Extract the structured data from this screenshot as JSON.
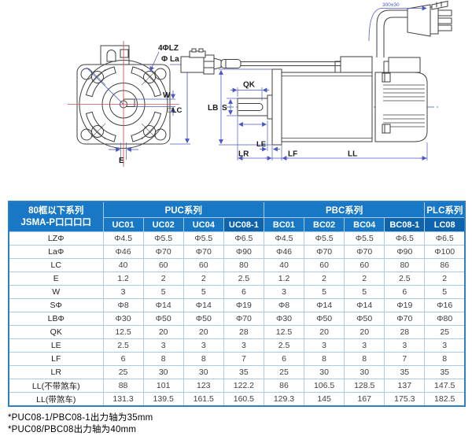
{
  "colors": {
    "header_blue": "#1878c5",
    "header_blue_dark": "#0d63ac",
    "grid_blue": "#a9cbe8",
    "outer_border_blue": "#2e7fc2",
    "dimension_blue": "#4a58c4",
    "centerline_red": "#cc5454",
    "drawing_line": "#3f3f3f"
  },
  "drawing": {
    "front": {
      "lz": "4ΦLZ",
      "la": "Φ La",
      "w": "W",
      "lc": "□LC",
      "e": "E"
    },
    "side": {
      "qk": "QK",
      "s": "S",
      "lb": "LB",
      "le": "LE",
      "lr": "LR",
      "lf": "LF",
      "ll": "LL",
      "cable": "300±30"
    }
  },
  "table": {
    "corner": {
      "line1": "80框以下系列",
      "line2": "JSMA-P口口口口"
    },
    "groups": [
      {
        "label": "PUC系列",
        "span": 4
      },
      {
        "label": "PBC系列",
        "span": 4
      },
      {
        "label": "PLC系列",
        "span": 1
      }
    ],
    "models": [
      "UC01",
      "UC02",
      "UC04",
      "UC08-1",
      "BC01",
      "BC02",
      "BC04",
      "BC08-1",
      "LC08"
    ],
    "highlight_models": [
      "UC08-1",
      "BC08-1",
      "LC08"
    ],
    "rows": [
      {
        "label": "LZΦ",
        "values": [
          "Φ4.5",
          "Φ5.5",
          "Φ5.5",
          "Φ6.5",
          "Φ4.5",
          "Φ5.5",
          "Φ5.5",
          "Φ6.5",
          "Φ6.5"
        ]
      },
      {
        "label": "LaΦ",
        "values": [
          "Φ46",
          "Φ70",
          "Φ70",
          "Φ90",
          "Φ46",
          "Φ70",
          "Φ70",
          "Φ90",
          "Φ100"
        ]
      },
      {
        "label": "LC",
        "values": [
          "40",
          "60",
          "60",
          "80",
          "40",
          "60",
          "60",
          "80",
          "86"
        ]
      },
      {
        "label": "E",
        "values": [
          "1.2",
          "2",
          "2",
          "2.5",
          "1.2",
          "2",
          "2",
          "2.5",
          "2"
        ]
      },
      {
        "label": "W",
        "values": [
          "3",
          "5",
          "5",
          "6",
          "3",
          "5",
          "5",
          "6",
          "5"
        ]
      },
      {
        "label": "SΦ",
        "values": [
          "Φ8",
          "Φ14",
          "Φ14",
          "Φ19",
          "Φ8",
          "Φ14",
          "Φ14",
          "Φ19",
          "Φ16"
        ]
      },
      {
        "label": "LBΦ",
        "values": [
          "Φ30",
          "Φ50",
          "Φ50",
          "Φ70",
          "Φ30",
          "Φ50",
          "Φ50",
          "Φ70",
          "Φ80"
        ]
      },
      {
        "label": "QK",
        "values": [
          "12.5",
          "20",
          "20",
          "28",
          "12.5",
          "20",
          "20",
          "28",
          "25"
        ]
      },
      {
        "label": "LE",
        "values": [
          "2.5",
          "3",
          "3",
          "3",
          "2.5",
          "3",
          "3",
          "3",
          "3"
        ]
      },
      {
        "label": "LF",
        "values": [
          "6",
          "8",
          "8",
          "7",
          "6",
          "8",
          "8",
          "7",
          "8"
        ]
      },
      {
        "label": "LR",
        "values": [
          "25",
          "30",
          "30",
          "35",
          "25",
          "30",
          "30",
          "35",
          "35"
        ]
      },
      {
        "label": "LL(不带煞车)",
        "values": [
          "88",
          "101",
          "123",
          "122.2",
          "86",
          "106.5",
          "128.5",
          "137",
          "147.5"
        ]
      },
      {
        "label": "LL(带煞车)",
        "values": [
          "131.3",
          "139.5",
          "161.5",
          "160.5",
          "129.3",
          "145",
          "167",
          "175.3",
          "182.5"
        ]
      }
    ]
  },
  "footnotes": [
    "*PUC08-1/PBC08-1出力轴为35mm",
    "*PUC08/PBC08出力轴为40mm"
  ]
}
